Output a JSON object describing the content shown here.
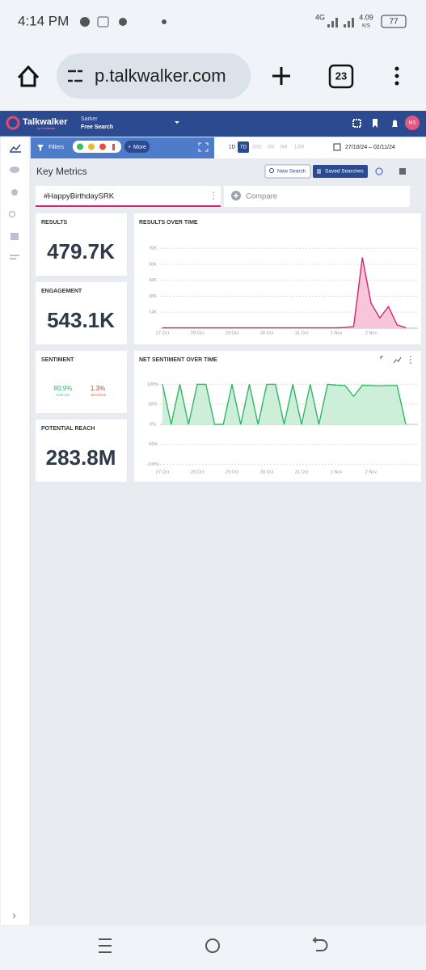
{
  "status_bar": {
    "time": "4:14 PM",
    "network": "4G",
    "speed": "4.09",
    "speed_unit": "K/S",
    "battery": "77"
  },
  "browser": {
    "url": "p.talkwalker.com",
    "tab_count": "23"
  },
  "app_header": {
    "brand": "Talkwalker",
    "brand_sub": "by Hootsuite",
    "project": "Sarker",
    "search_mode": "Free Search",
    "avatar": "MS"
  },
  "toolbar": {
    "filters": "Filters",
    "more": "More",
    "ranges": [
      "1D",
      "7D",
      "30D",
      "3M",
      "6M",
      "13M"
    ],
    "date_range": "27/10/24 – 02/11/24"
  },
  "page": {
    "title": "Key Metrics",
    "new_search": "New Search",
    "saved_searches": "Saved Searches",
    "query_tab": "#HappyBirthdaySRK",
    "compare": "Compare"
  },
  "metrics": [
    {
      "label": "RESULTS",
      "value": "479.7K"
    },
    {
      "label": "ENGAGEMENT",
      "value": "543.1K"
    },
    {
      "label": "POTENTIAL REACH",
      "value": "283.8M"
    }
  ],
  "sentiment": {
    "label": "SENTIMENT",
    "positive": "80.9%",
    "positive_label": "POSITIVE",
    "negative": "1.3%",
    "negative_label": "NEGATIVE"
  },
  "charts": [
    {
      "type": "area",
      "title": "RESULTS OVER TIME",
      "color": "#d6246e",
      "fill": "#f7c6da",
      "categories": [
        "27 Oct",
        null,
        null,
        null,
        "28 Oct",
        null,
        null,
        null,
        "29 Oct",
        null,
        null,
        null,
        "30 Oct",
        null,
        null,
        null,
        "31 Oct",
        null,
        null,
        null,
        "1 Nov",
        null,
        null,
        null,
        "2 Nov",
        null,
        null,
        null,
        null
      ],
      "values": [
        300,
        300,
        300,
        300,
        300,
        300,
        300,
        300,
        300,
        300,
        300,
        300,
        300,
        300,
        300,
        300,
        300,
        300,
        300,
        300,
        300,
        600,
        1500,
        62000,
        22000,
        9000,
        19000,
        3000,
        300
      ],
      "ylim": [
        0,
        78000
      ],
      "yticks": [
        {
          "value": 14000,
          "label": "14K"
        },
        {
          "value": 28000,
          "label": "28K"
        },
        {
          "value": 42000,
          "label": "42K"
        },
        {
          "value": 56000,
          "label": "56K"
        },
        {
          "value": 70000,
          "label": "70K"
        }
      ],
      "grid": true
    },
    {
      "type": "area",
      "title": "NET SENTIMENT OVER TIME",
      "color": "#2fb864",
      "fill": "#cdeed8",
      "categories": [
        "27 Oct",
        null,
        null,
        null,
        "28 Oct",
        null,
        null,
        null,
        "29 Oct",
        null,
        null,
        null,
        "30 Oct",
        null,
        null,
        null,
        "31 Oct",
        null,
        null,
        null,
        "1 Nov",
        null,
        null,
        null,
        "2 Nov",
        null,
        null,
        null,
        null
      ],
      "values": [
        100,
        0,
        100,
        0,
        100,
        100,
        0,
        0,
        100,
        0,
        100,
        0,
        100,
        100,
        0,
        100,
        0,
        100,
        0,
        100,
        98,
        97,
        70,
        98,
        97,
        96,
        97,
        97,
        0
      ],
      "ylim": [
        -115,
        115
      ],
      "yticks": [
        {
          "value": 100,
          "label": "100%"
        },
        {
          "value": 50,
          "label": "50%"
        },
        {
          "value": 0,
          "label": "0%"
        },
        {
          "value": -50,
          "label": "-50%"
        },
        {
          "value": -100,
          "label": "-100%"
        }
      ],
      "grid": true
    }
  ]
}
